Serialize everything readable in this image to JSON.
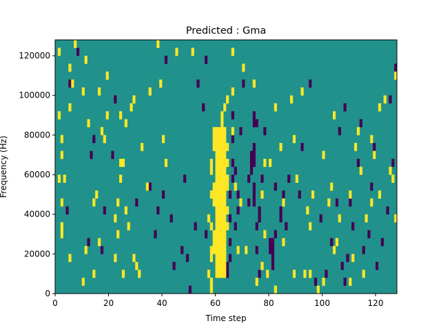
{
  "chart_data": {
    "type": "heatmap",
    "title": "Predicted : Gma",
    "xlabel": "Time step",
    "ylabel": "Frequency (Hz)",
    "xlim": [
      0,
      128
    ],
    "ylim": [
      0,
      128000
    ],
    "x_ticks": [
      0,
      20,
      40,
      60,
      80,
      100,
      120
    ],
    "y_ticks": [
      0,
      20000,
      40000,
      60000,
      80000,
      100000,
      120000
    ],
    "x_tick_labels": [
      "0",
      "20",
      "40",
      "60",
      "80",
      "100",
      "120"
    ],
    "y_tick_labels": [
      "0",
      "20000",
      "40000",
      "60000",
      "80000",
      "100000",
      "120000"
    ],
    "colors": {
      "background": "#21918c",
      "high": "#fde725",
      "low": "#440154"
    },
    "grid": false,
    "legend": "none",
    "cell": {
      "time_steps": 1,
      "freq_hz": 4000
    },
    "yellow_cells": [
      [
        60,
        2
      ],
      [
        60,
        3
      ],
      [
        60,
        4
      ],
      [
        60,
        5
      ],
      [
        60,
        6
      ],
      [
        60,
        7
      ],
      [
        60,
        8
      ],
      [
        60,
        9
      ],
      [
        60,
        10
      ],
      [
        60,
        11
      ],
      [
        60,
        12
      ],
      [
        60,
        13
      ],
      [
        60,
        14
      ],
      [
        60,
        15
      ],
      [
        60,
        16
      ],
      [
        60,
        17
      ],
      [
        60,
        18
      ],
      [
        60,
        19
      ],
      [
        60,
        20
      ],
      [
        61,
        2
      ],
      [
        61,
        3
      ],
      [
        61,
        4
      ],
      [
        61,
        5
      ],
      [
        61,
        6
      ],
      [
        61,
        7
      ],
      [
        61,
        8
      ],
      [
        61,
        9
      ],
      [
        61,
        10
      ],
      [
        61,
        11
      ],
      [
        61,
        12
      ],
      [
        61,
        13
      ],
      [
        61,
        14
      ],
      [
        61,
        15
      ],
      [
        61,
        16
      ],
      [
        61,
        17
      ],
      [
        61,
        18
      ],
      [
        61,
        19
      ],
      [
        61,
        20
      ],
      [
        62,
        2
      ],
      [
        62,
        3
      ],
      [
        62,
        4
      ],
      [
        62,
        5
      ],
      [
        62,
        6
      ],
      [
        62,
        7
      ],
      [
        62,
        8
      ],
      [
        62,
        9
      ],
      [
        62,
        10
      ],
      [
        62,
        11
      ],
      [
        62,
        12
      ],
      [
        62,
        13
      ],
      [
        62,
        14
      ],
      [
        62,
        15
      ],
      [
        62,
        16
      ],
      [
        62,
        17
      ],
      [
        62,
        18
      ],
      [
        62,
        19
      ],
      [
        62,
        20
      ],
      [
        63,
        2
      ],
      [
        63,
        3
      ],
      [
        63,
        4
      ],
      [
        63,
        5
      ],
      [
        63,
        6
      ],
      [
        63,
        7
      ],
      [
        63,
        8
      ],
      [
        63,
        9
      ],
      [
        63,
        10
      ],
      [
        63,
        11
      ],
      [
        63,
        12
      ],
      [
        63,
        13
      ],
      [
        63,
        14
      ],
      [
        63,
        15
      ],
      [
        63,
        16
      ],
      [
        63,
        17
      ],
      [
        63,
        18
      ],
      [
        63,
        19
      ],
      [
        63,
        20
      ],
      [
        59,
        5
      ],
      [
        59,
        6
      ],
      [
        59,
        7
      ],
      [
        59,
        11
      ],
      [
        59,
        12
      ],
      [
        59,
        13
      ],
      [
        59,
        18
      ],
      [
        59,
        19
      ],
      [
        59,
        20
      ],
      [
        58,
        0
      ],
      [
        58,
        1
      ],
      [
        58,
        4
      ],
      [
        58,
        5
      ],
      [
        58,
        8
      ],
      [
        58,
        12
      ],
      [
        58,
        15
      ],
      [
        58,
        16
      ],
      [
        64,
        8
      ],
      [
        64,
        10
      ],
      [
        64,
        13
      ],
      [
        64,
        14
      ],
      [
        64,
        16
      ],
      [
        64,
        18
      ],
      [
        57,
        2
      ],
      [
        57,
        9
      ],
      [
        62,
        21
      ],
      [
        62,
        22
      ],
      [
        63,
        23
      ],
      [
        64,
        24
      ],
      [
        2,
        7
      ],
      [
        2,
        8
      ],
      [
        2,
        11
      ],
      [
        1,
        14
      ],
      [
        3,
        14
      ],
      [
        2,
        17
      ],
      [
        2,
        19
      ],
      [
        1,
        22
      ],
      [
        1,
        30
      ],
      [
        5,
        4
      ],
      [
        5,
        23
      ],
      [
        5,
        28
      ],
      [
        6,
        26
      ],
      [
        7,
        31
      ],
      [
        10,
        25
      ],
      [
        11,
        29
      ],
      [
        12,
        21
      ],
      [
        11,
        5
      ],
      [
        10,
        1
      ],
      [
        14,
        2
      ],
      [
        14,
        11
      ],
      [
        15,
        12
      ],
      [
        16,
        6
      ],
      [
        16,
        25
      ],
      [
        17,
        20
      ],
      [
        18,
        19
      ],
      [
        19,
        22
      ],
      [
        19,
        27
      ],
      [
        22,
        4
      ],
      [
        22,
        9
      ],
      [
        23,
        7
      ],
      [
        23,
        11
      ],
      [
        24,
        14
      ],
      [
        24,
        16
      ],
      [
        24,
        22
      ],
      [
        25,
        2
      ],
      [
        25,
        16
      ],
      [
        26,
        10
      ],
      [
        26,
        21
      ],
      [
        27,
        8
      ],
      [
        28,
        23
      ],
      [
        29,
        4
      ],
      [
        29,
        24
      ],
      [
        30,
        3
      ],
      [
        31,
        2
      ],
      [
        32,
        18
      ],
      [
        34,
        13
      ],
      [
        35,
        25
      ],
      [
        38,
        31
      ],
      [
        39,
        26
      ],
      [
        40,
        19
      ],
      [
        41,
        16
      ],
      [
        45,
        30
      ],
      [
        51,
        30
      ],
      [
        66,
        20
      ],
      [
        66,
        25
      ],
      [
        66,
        30
      ],
      [
        67,
        13
      ],
      [
        68,
        5
      ],
      [
        69,
        11
      ],
      [
        70,
        28
      ],
      [
        71,
        5
      ],
      [
        74,
        26
      ],
      [
        75,
        1
      ],
      [
        77,
        12
      ],
      [
        77,
        3
      ],
      [
        78,
        16
      ],
      [
        78,
        7
      ],
      [
        79,
        2
      ],
      [
        80,
        16
      ],
      [
        82,
        0
      ],
      [
        82,
        23
      ],
      [
        84,
        18
      ],
      [
        85,
        6
      ],
      [
        85,
        11
      ],
      [
        88,
        24
      ],
      [
        89,
        2
      ],
      [
        89,
        19
      ],
      [
        90,
        14
      ],
      [
        92,
        25
      ],
      [
        93,
        2
      ],
      [
        94,
        10
      ],
      [
        95,
        2
      ],
      [
        95,
        8
      ],
      [
        96,
        12
      ],
      [
        98,
        0
      ],
      [
        100,
        1
      ],
      [
        100,
        17
      ],
      [
        102,
        11
      ],
      [
        103,
        13
      ],
      [
        104,
        22
      ],
      [
        104,
        5
      ],
      [
        105,
        6
      ],
      [
        106,
        9
      ],
      [
        110,
        1
      ],
      [
        110,
        12
      ],
      [
        111,
        4
      ],
      [
        112,
        18
      ],
      [
        113,
        20
      ],
      [
        114,
        15
      ],
      [
        115,
        2
      ],
      [
        116,
        9
      ],
      [
        118,
        11
      ],
      [
        118,
        19
      ],
      [
        119,
        17
      ],
      [
        121,
        23
      ],
      [
        121,
        12
      ],
      [
        123,
        24
      ],
      [
        125,
        15
      ],
      [
        126,
        14
      ],
      [
        127,
        9
      ],
      [
        127,
        27
      ]
    ],
    "purple_cells": [
      [
        64,
        2
      ],
      [
        64,
        3
      ],
      [
        65,
        4
      ],
      [
        65,
        6
      ],
      [
        65,
        9
      ],
      [
        65,
        12
      ],
      [
        66,
        14
      ],
      [
        66,
        16
      ],
      [
        66,
        19
      ],
      [
        66,
        22
      ],
      [
        67,
        8
      ],
      [
        67,
        15
      ],
      [
        68,
        10
      ],
      [
        68,
        12
      ],
      [
        69,
        20
      ],
      [
        70,
        26
      ],
      [
        72,
        11
      ],
      [
        72,
        14
      ],
      [
        73,
        15
      ],
      [
        73,
        16
      ],
      [
        73,
        17
      ],
      [
        74,
        11
      ],
      [
        74,
        12
      ],
      [
        74,
        13
      ],
      [
        74,
        16
      ],
      [
        74,
        17
      ],
      [
        74,
        18
      ],
      [
        74,
        21
      ],
      [
        74,
        22
      ],
      [
        75,
        21
      ],
      [
        75,
        8
      ],
      [
        75,
        5
      ],
      [
        76,
        2
      ],
      [
        76,
        9
      ],
      [
        76,
        10
      ],
      [
        77,
        14
      ],
      [
        78,
        20
      ],
      [
        80,
        5
      ],
      [
        80,
        6
      ],
      [
        81,
        5
      ],
      [
        81,
        6
      ],
      [
        81,
        3
      ],
      [
        81,
        4
      ],
      [
        82,
        13
      ],
      [
        82,
        7
      ],
      [
        84,
        9
      ],
      [
        84,
        10
      ],
      [
        85,
        12
      ],
      [
        86,
        8
      ],
      [
        87,
        14
      ],
      [
        4,
        10
      ],
      [
        5,
        26
      ],
      [
        8,
        30
      ],
      [
        10,
        1
      ],
      [
        12,
        6
      ],
      [
        13,
        17
      ],
      [
        14,
        19
      ],
      [
        17,
        5
      ],
      [
        18,
        10
      ],
      [
        21,
        17
      ],
      [
        22,
        24
      ],
      [
        30,
        11
      ],
      [
        35,
        13
      ],
      [
        37,
        7
      ],
      [
        38,
        10
      ],
      [
        40,
        12
      ],
      [
        41,
        29
      ],
      [
        43,
        9
      ],
      [
        44,
        3
      ],
      [
        47,
        5
      ],
      [
        48,
        14
      ],
      [
        49,
        4
      ],
      [
        50,
        0
      ],
      [
        52,
        8
      ],
      [
        53,
        26
      ],
      [
        55,
        23
      ],
      [
        56,
        29
      ],
      [
        56,
        7
      ],
      [
        91,
        12
      ],
      [
        92,
        18
      ],
      [
        95,
        26
      ],
      [
        97,
        1
      ],
      [
        99,
        9
      ],
      [
        101,
        2
      ],
      [
        103,
        6
      ],
      [
        105,
        11
      ],
      [
        106,
        20
      ],
      [
        107,
        3
      ],
      [
        108,
        1
      ],
      [
        108,
        23
      ],
      [
        109,
        4
      ],
      [
        110,
        11
      ],
      [
        111,
        8
      ],
      [
        113,
        16
      ],
      [
        114,
        21
      ],
      [
        115,
        5
      ],
      [
        117,
        7
      ],
      [
        118,
        13
      ],
      [
        119,
        18
      ],
      [
        120,
        3
      ],
      [
        122,
        6
      ],
      [
        124,
        10
      ],
      [
        125,
        24
      ],
      [
        127,
        28
      ],
      [
        126,
        16
      ]
    ]
  }
}
